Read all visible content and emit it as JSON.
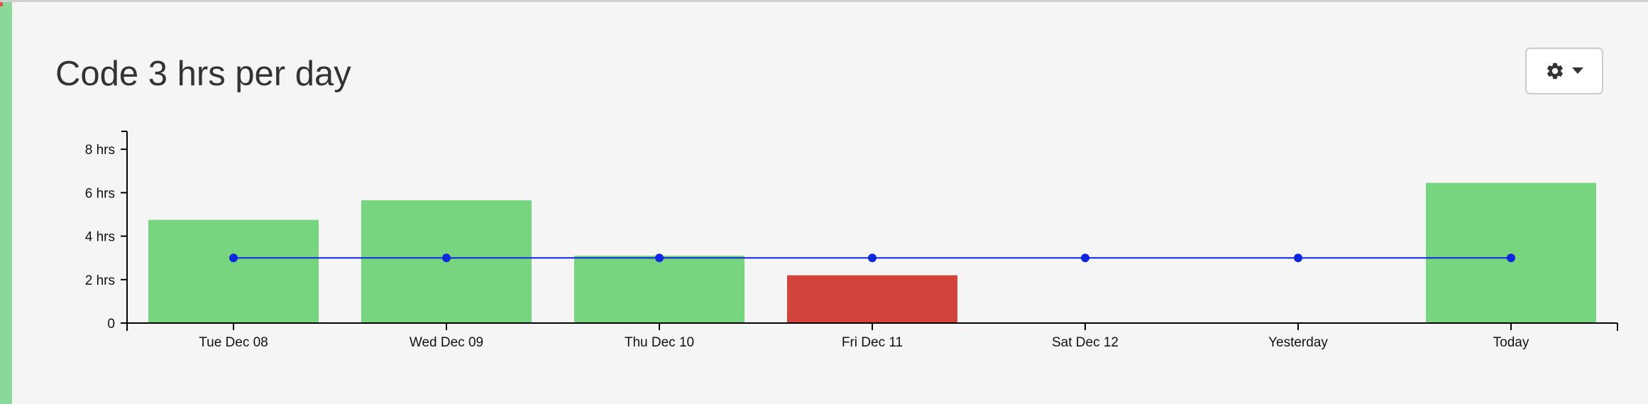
{
  "header": {
    "title": "Code 3 hrs per day"
  },
  "icons": {
    "settings": "gear-icon",
    "dropdown": "caret-down-icon"
  },
  "colors": {
    "goal_met": "#77d47f",
    "goal_missed": "#d2433b",
    "goal_line": "#1027e0",
    "accent": "#8bd99a"
  },
  "chart_data": {
    "type": "bar",
    "categories": [
      "Tue Dec 08",
      "Wed Dec 09",
      "Thu Dec 10",
      "Fri Dec 11",
      "Sat Dec 12",
      "Yesterday",
      "Today"
    ],
    "values": [
      4.75,
      5.65,
      3.1,
      2.2,
      0,
      0,
      6.45
    ],
    "status": [
      "met",
      "met",
      "met",
      "missed",
      "missed",
      "missed",
      "met"
    ],
    "goal": {
      "values": [
        3,
        3,
        3,
        3,
        3,
        3,
        3
      ]
    },
    "y_ticks": [
      {
        "value": 0,
        "label": "0"
      },
      {
        "value": 2,
        "label": "2 hrs"
      },
      {
        "value": 4,
        "label": "4 hrs"
      },
      {
        "value": 6,
        "label": "6 hrs"
      },
      {
        "value": 8,
        "label": "8 hrs"
      }
    ],
    "ylim": [
      0,
      8.8
    ],
    "title": "Code 3 hrs per day",
    "xlabel": "",
    "ylabel": "",
    "grid": false,
    "legend": "none"
  }
}
